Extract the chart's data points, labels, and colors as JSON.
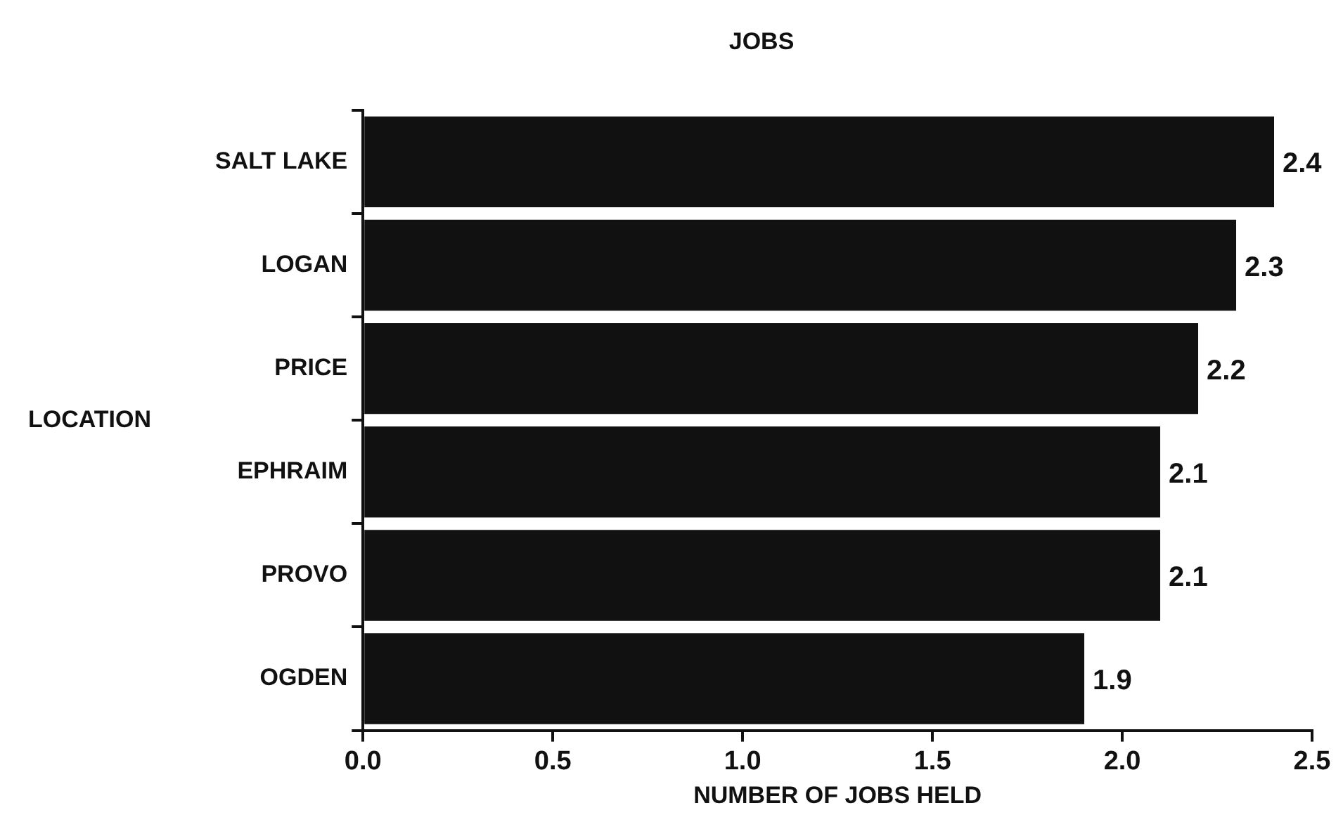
{
  "chart_data": {
    "type": "bar",
    "orientation": "horizontal",
    "title": "JOBS",
    "xlabel": "NUMBER OF JOBS HELD",
    "ylabel": "LOCATION",
    "categories": [
      "SALT LAKE",
      "LOGAN",
      "PRICE",
      "EPHRAIM",
      "PROVO",
      "OGDEN"
    ],
    "values": [
      2.4,
      2.3,
      2.2,
      2.1,
      2.1,
      1.9
    ],
    "color": "#111111",
    "xlim": [
      0,
      2.5
    ],
    "xticks": [
      {
        "value": 0,
        "label": "0.0"
      },
      {
        "value": 0.5,
        "label": "0.5"
      },
      {
        "value": 1,
        "label": "1.0"
      },
      {
        "value": 1.5,
        "label": "1.5"
      },
      {
        "value": 2,
        "label": "2.0"
      },
      {
        "value": 2.5,
        "label": "2.5"
      }
    ],
    "data_labels": true,
    "grid": false,
    "legend": false
  }
}
